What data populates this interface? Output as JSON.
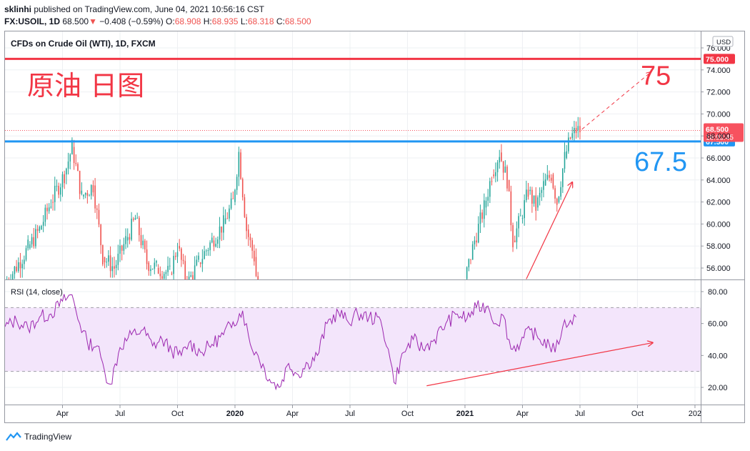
{
  "header": {
    "publisher": "sklinhi",
    "published_text": " published on TradingView.com, June 04, 2021 10:56:16 CST",
    "symbol": "FX:USOIL, 1D",
    "last": "68.500",
    "change_arrow": "▼",
    "change": "−0.408 (−0.59%)",
    "o_label": "O:",
    "o_val": "68.908",
    "h_label": "H:",
    "h_val": "68.935",
    "l_label": "L:",
    "l_val": "68.318",
    "c_label": "C:",
    "c_val": "68.500"
  },
  "footer": {
    "brand": "TradingView"
  },
  "chart_data": {
    "type": "candlestick",
    "title": "CFDs on Crude Oil (WTI), 1D, FXCM",
    "annotation_cn": "原油 日图",
    "currency": "USD",
    "price_axis": {
      "ticks": [
        "76.000",
        "74.000",
        "72.000",
        "70.000",
        "68.000",
        "66.000",
        "64.000",
        "62.000",
        "60.000",
        "58.000",
        "56.000"
      ],
      "tick_values": [
        76,
        74,
        72,
        70,
        68,
        66,
        64,
        62,
        60,
        58,
        56
      ],
      "range": [
        55.1,
        77.2
      ]
    },
    "levels": [
      {
        "value": 75.0,
        "label": "75.000",
        "big_label": "75",
        "color": "#f23645"
      },
      {
        "value": 67.5,
        "label": "67.500",
        "big_label": "67.5",
        "color": "#2196f3"
      }
    ],
    "last_price": {
      "value": 68.5,
      "label": "68.500",
      "countdown": "18:03:45",
      "color": "#f7525f"
    },
    "x_axis": {
      "labels": [
        "Apr",
        "Jul",
        "Oct",
        "2020",
        "Apr",
        "Jul",
        "Oct",
        "2021",
        "Apr",
        "Jul",
        "Oct",
        "202"
      ],
      "label_index": [
        3,
        6,
        9,
        12,
        15,
        18,
        21,
        24,
        27,
        30,
        33,
        36
      ],
      "range_index": [
        0,
        36.3
      ]
    },
    "price_path": [
      [
        0,
        54.5
      ],
      [
        1.2,
        57.8
      ],
      [
        1.8,
        59.5
      ],
      [
        2.4,
        62.0
      ],
      [
        3.1,
        64.5
      ],
      [
        3.5,
        67.0
      ],
      [
        4.0,
        62.5
      ],
      [
        4.6,
        63.5
      ],
      [
        5.1,
        57.0
      ],
      [
        5.7,
        56.0
      ],
      [
        6.3,
        58.5
      ],
      [
        6.8,
        60.5
      ],
      [
        7.4,
        56.5
      ],
      [
        7.9,
        56.0
      ],
      [
        8.6,
        55.5
      ],
      [
        9.0,
        58.0
      ],
      [
        9.5,
        54.5
      ],
      [
        10.1,
        56.5
      ],
      [
        10.8,
        58.5
      ],
      [
        11.4,
        60.0
      ],
      [
        11.9,
        62.0
      ],
      [
        12.2,
        66.5
      ],
      [
        12.6,
        59.5
      ],
      [
        13.0,
        57.0
      ],
      [
        13.3,
        52.0
      ],
      [
        24.0,
        55.0
      ],
      [
        24.5,
        58.5
      ],
      [
        25.0,
        61.5
      ],
      [
        25.4,
        64.5
      ],
      [
        25.8,
        66.5
      ],
      [
        26.2,
        64.0
      ],
      [
        26.5,
        58.5
      ],
      [
        26.9,
        60.5
      ],
      [
        27.3,
        63.0
      ],
      [
        27.7,
        61.5
      ],
      [
        28.1,
        63.5
      ],
      [
        28.5,
        64.5
      ],
      [
        28.8,
        62.0
      ],
      [
        29.2,
        66.0
      ],
      [
        29.5,
        67.8
      ],
      [
        29.8,
        68.5
      ],
      [
        30.0,
        68.5
      ]
    ],
    "arrow_to_target": {
      "from": [
        30.1,
        68.6
      ],
      "to": [
        33.7,
        73.8
      ]
    },
    "arrow_trend_price": {
      "from": [
        27.2,
        55.0
      ],
      "to": [
        29.6,
        63.8
      ]
    },
    "rsi": {
      "label": "RSI (14, close)",
      "ticks": [
        "80.00",
        "60.00",
        "40.00",
        "20.00"
      ],
      "tick_values": [
        80,
        60,
        40,
        20
      ],
      "range": [
        13,
        88
      ],
      "band": [
        30,
        70
      ],
      "path": [
        [
          0,
          58
        ],
        [
          0.6,
          62
        ],
        [
          1.2,
          57
        ],
        [
          1.8,
          64
        ],
        [
          2.4,
          66
        ],
        [
          3.0,
          74
        ],
        [
          3.5,
          78
        ],
        [
          3.9,
          60
        ],
        [
          4.3,
          48
        ],
        [
          4.8,
          46
        ],
        [
          5.2,
          30
        ],
        [
          5.5,
          22
        ],
        [
          6.0,
          45
        ],
        [
          6.6,
          53
        ],
        [
          7.2,
          56
        ],
        [
          7.7,
          46
        ],
        [
          8.2,
          50
        ],
        [
          8.7,
          43
        ],
        [
          9.2,
          40
        ],
        [
          9.6,
          48
        ],
        [
          10.2,
          42
        ],
        [
          10.8,
          47
        ],
        [
          11.4,
          53
        ],
        [
          11.9,
          61
        ],
        [
          12.4,
          68
        ],
        [
          12.8,
          47
        ],
        [
          13.2,
          40
        ],
        [
          13.8,
          25
        ],
        [
          14.3,
          20
        ],
        [
          14.8,
          35
        ],
        [
          15.3,
          28
        ],
        [
          15.8,
          35
        ],
        [
          16.3,
          40
        ],
        [
          16.8,
          60
        ],
        [
          17.4,
          67
        ],
        [
          17.9,
          61
        ],
        [
          18.4,
          66
        ],
        [
          19.0,
          64
        ],
        [
          19.6,
          62
        ],
        [
          20.0,
          44
        ],
        [
          20.3,
          23
        ],
        [
          20.8,
          42
        ],
        [
          21.3,
          50
        ],
        [
          21.8,
          44
        ],
        [
          22.4,
          50
        ],
        [
          23.0,
          60
        ],
        [
          23.6,
          66
        ],
        [
          24.1,
          63
        ],
        [
          24.6,
          70
        ],
        [
          25.2,
          71
        ],
        [
          25.6,
          60
        ],
        [
          26.0,
          65
        ],
        [
          26.4,
          44
        ],
        [
          26.9,
          48
        ],
        [
          27.4,
          56
        ],
        [
          27.9,
          50
        ],
        [
          28.4,
          47
        ],
        [
          28.7,
          42
        ],
        [
          29.1,
          58
        ],
        [
          29.5,
          62
        ],
        [
          29.8,
          64
        ]
      ]
    },
    "arrow_rsi": {
      "from": [
        22.0,
        21
      ],
      "to": [
        33.8,
        48
      ]
    }
  }
}
